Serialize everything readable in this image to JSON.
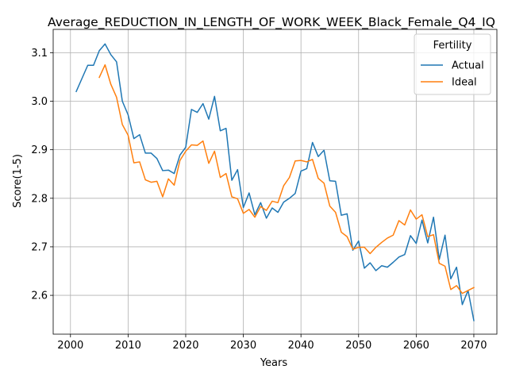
{
  "chart_data": {
    "type": "line",
    "title": "Average_REDUCTION_IN_LENGTH_OF_WORK_WEEK_Black_Female_Q4_IQ",
    "xlabel": "Years",
    "ylabel": "Score(1-5)",
    "xlim": [
      1997,
      2074
    ],
    "ylim": [
      2.52,
      3.148
    ],
    "xticks": [
      2000,
      2010,
      2020,
      2030,
      2040,
      2050,
      2060,
      2070
    ],
    "yticks": [
      2.6,
      2.7,
      2.8,
      2.9,
      3.0,
      3.1
    ],
    "grid": true,
    "legend": {
      "title": "Fertility",
      "placement": "top-right"
    },
    "series": [
      {
        "name": "Actual",
        "color": "#1f77b4",
        "x": [
          2001,
          2002,
          2003,
          2004,
          2005,
          2006,
          2007,
          2008,
          2009,
          2010,
          2011,
          2012,
          2013,
          2014,
          2015,
          2016,
          2017,
          2018,
          2019,
          2020,
          2021,
          2022,
          2023,
          2024,
          2025,
          2026,
          2027,
          2028,
          2029,
          2030,
          2031,
          2032,
          2033,
          2034,
          2035,
          2036,
          2037,
          2038,
          2039,
          2040,
          2041,
          2042,
          2043,
          2044,
          2045,
          2046,
          2047,
          2048,
          2049,
          2050,
          2051,
          2052,
          2053,
          2054,
          2055,
          2056,
          2057,
          2058,
          2059,
          2060,
          2061,
          2062,
          2063,
          2064,
          2065,
          2066,
          2067,
          2068,
          2069,
          2070
        ],
        "values": [
          3.02,
          3.047,
          3.074,
          3.074,
          3.104,
          3.118,
          3.096,
          3.081,
          3.0,
          2.972,
          2.923,
          2.931,
          2.893,
          2.893,
          2.882,
          2.857,
          2.858,
          2.851,
          2.889,
          2.905,
          2.983,
          2.977,
          2.995,
          2.963,
          3.01,
          2.939,
          2.944,
          2.837,
          2.859,
          2.781,
          2.811,
          2.766,
          2.791,
          2.759,
          2.78,
          2.771,
          2.792,
          2.8,
          2.81,
          2.856,
          2.861,
          2.915,
          2.886,
          2.899,
          2.836,
          2.835,
          2.765,
          2.768,
          2.693,
          2.712,
          2.656,
          2.667,
          2.651,
          2.661,
          2.658,
          2.668,
          2.679,
          2.684,
          2.723,
          2.707,
          2.755,
          2.708,
          2.761,
          2.674,
          2.724,
          2.634,
          2.658,
          2.581,
          2.61,
          2.548
        ]
      },
      {
        "name": "Ideal",
        "color": "#ff7f0e",
        "x": [
          2005,
          2006,
          2007,
          2008,
          2009,
          2010,
          2011,
          2012,
          2013,
          2014,
          2015,
          2016,
          2017,
          2018,
          2019,
          2020,
          2021,
          2022,
          2023,
          2024,
          2025,
          2026,
          2027,
          2028,
          2029,
          2030,
          2031,
          2032,
          2033,
          2034,
          2035,
          2036,
          2037,
          2038,
          2039,
          2040,
          2041,
          2042,
          2043,
          2044,
          2045,
          2046,
          2047,
          2048,
          2049,
          2050,
          2051,
          2052,
          2053,
          2054,
          2055,
          2056,
          2057,
          2058,
          2059,
          2060,
          2061,
          2062,
          2063,
          2064,
          2065,
          2066,
          2067,
          2068,
          2069,
          2070
        ],
        "values": [
          3.049,
          3.075,
          3.035,
          3.008,
          2.952,
          2.93,
          2.873,
          2.875,
          2.838,
          2.833,
          2.835,
          2.803,
          2.84,
          2.827,
          2.878,
          2.897,
          2.91,
          2.909,
          2.918,
          2.872,
          2.897,
          2.843,
          2.851,
          2.803,
          2.799,
          2.769,
          2.777,
          2.761,
          2.783,
          2.775,
          2.794,
          2.791,
          2.826,
          2.843,
          2.877,
          2.878,
          2.875,
          2.88,
          2.841,
          2.831,
          2.784,
          2.771,
          2.73,
          2.721,
          2.695,
          2.699,
          2.699,
          2.686,
          2.699,
          2.709,
          2.718,
          2.724,
          2.754,
          2.745,
          2.776,
          2.757,
          2.766,
          2.721,
          2.725,
          2.666,
          2.66,
          2.612,
          2.62,
          2.604,
          2.61,
          2.616
        ]
      }
    ]
  }
}
